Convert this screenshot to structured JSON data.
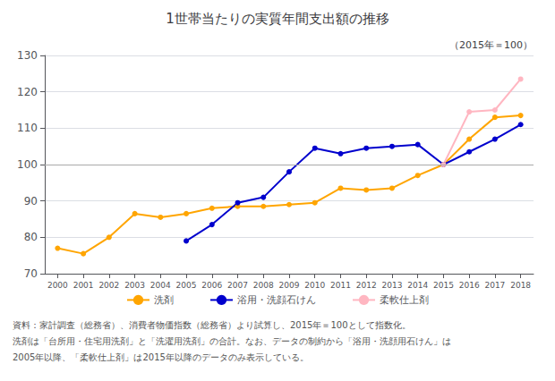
{
  "chart_data": {
    "type": "line",
    "title": "1世帯当たりの実質年間支出額の推移",
    "subtitle": "（2015年＝100）",
    "x": [
      2000,
      2001,
      2002,
      2003,
      2004,
      2005,
      2006,
      2007,
      2008,
      2009,
      2010,
      2011,
      2012,
      2013,
      2014,
      2015,
      2016,
      2017,
      2018
    ],
    "series": [
      {
        "name": "洗剤",
        "color": "#FFA500",
        "values": [
          77.0,
          75.5,
          80.0,
          86.5,
          85.5,
          86.5,
          88.0,
          88.5,
          88.5,
          89.0,
          89.5,
          93.5,
          93.0,
          93.5,
          97.0,
          100.0,
          107.0,
          113.0,
          113.5
        ]
      },
      {
        "name": "浴用・洗顔石けん",
        "color": "#0000CD",
        "values": [
          null,
          null,
          null,
          null,
          null,
          79.0,
          83.5,
          89.5,
          91.0,
          98.0,
          104.5,
          103.0,
          104.5,
          105.0,
          105.5,
          100.0,
          103.5,
          107.0,
          111.0
        ]
      },
      {
        "name": "柔軟仕上剤",
        "color": "#FFB6C1",
        "values": [
          null,
          null,
          null,
          null,
          null,
          null,
          null,
          null,
          null,
          null,
          null,
          null,
          null,
          null,
          null,
          100.0,
          114.5,
          115.0,
          123.5
        ]
      }
    ],
    "xlim": [
      1999.5,
      2018.5
    ],
    "xticks": [
      2000,
      2001,
      2002,
      2003,
      2004,
      2005,
      2006,
      2007,
      2008,
      2009,
      2010,
      2011,
      2012,
      2013,
      2014,
      2015,
      2016,
      2017,
      2018
    ],
    "ylim": [
      70,
      130
    ],
    "yticks": [
      70,
      80,
      90,
      100,
      110,
      120,
      130
    ],
    "hline": 100,
    "annotations": [
      "資料：家計調査（総務省）、消費者物価指数（総務省）より試算し、2015年＝100として指数化。",
      "洗剤は「台所用・住宅用洗剤」と「洗濯用洗剤」の合計。なお、データの制約から「浴用・洗顔用石けん」は",
      "2005年以降、「柔軟仕上剤」は2015年以降のデータのみ表示している。"
    ],
    "marker": "circle",
    "grid": true,
    "legend": "bottom"
  }
}
